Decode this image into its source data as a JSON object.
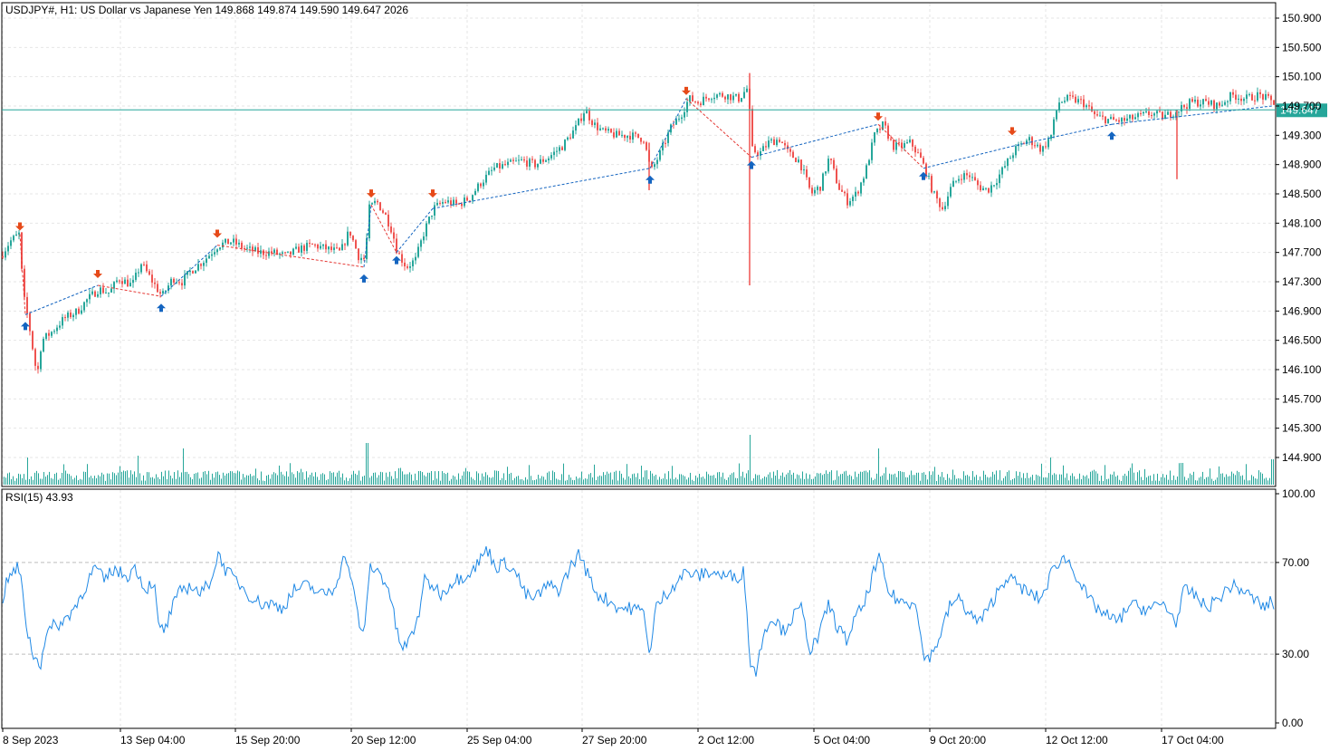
{
  "header": {
    "symbol_line": "USDJPY#, H1:  US Dollar vs Japanese Yen  149.868 149.874 149.590 149.647  2026"
  },
  "price_tag": "149.647",
  "rsi_label": "RSI(15) 43.93",
  "colors": {
    "up": "#26a69a",
    "down": "#ef5350",
    "price_line": "#26a69a",
    "rsi_line": "#1e88e5",
    "arrow_up": "#1565c0",
    "arrow_down": "#e64a19",
    "zigzag_up": "#1565c0",
    "zigzag_down": "#e53935",
    "grid": "#e6e6e6",
    "volume": "#26a69a"
  },
  "chart_data": [
    {
      "type": "candlestick",
      "title": "USDJPY#, H1",
      "y_ticks": [
        "150.900",
        "150.500",
        "150.100",
        "149.700",
        "149.300",
        "148.900",
        "148.500",
        "148.100",
        "147.700",
        "147.300",
        "146.900",
        "146.500",
        "146.100",
        "145.700",
        "145.300",
        "144.900"
      ],
      "ylim": [
        144.7,
        151.05
      ],
      "last_price": 149.647,
      "x_ticks": [
        "8 Sep 2023",
        "13 Sep 04:00",
        "15 Sep 20:00",
        "20 Sep 12:00",
        "25 Sep 04:00",
        "27 Sep 20:00",
        "2 Oct 12:00",
        "5 Oct 04:00",
        "9 Oct 20:00",
        "12 Oct 12:00",
        "17 Oct 04:00"
      ],
      "close_path": [
        [
          0,
          147.65
        ],
        [
          10,
          147.85
        ],
        [
          20,
          147.95
        ],
        [
          25,
          147.1
        ],
        [
          30,
          146.8
        ],
        [
          35,
          146.4
        ],
        [
          40,
          146.0
        ],
        [
          45,
          146.5
        ],
        [
          55,
          146.6
        ],
        [
          70,
          146.8
        ],
        [
          85,
          146.9
        ],
        [
          95,
          147.05
        ],
        [
          108,
          147.2
        ],
        [
          120,
          147.15
        ],
        [
          130,
          147.35
        ],
        [
          145,
          147.25
        ],
        [
          155,
          147.55
        ],
        [
          165,
          147.35
        ],
        [
          178,
          147.1
        ],
        [
          190,
          147.35
        ],
        [
          200,
          147.3
        ],
        [
          210,
          147.45
        ],
        [
          225,
          147.6
        ],
        [
          240,
          147.8
        ],
        [
          255,
          147.85
        ],
        [
          270,
          147.75
        ],
        [
          285,
          147.7
        ],
        [
          300,
          147.7
        ],
        [
          315,
          147.65
        ],
        [
          330,
          147.75
        ],
        [
          345,
          147.8
        ],
        [
          360,
          147.75
        ],
        [
          375,
          147.7
        ],
        [
          385,
          148.0
        ],
        [
          395,
          147.65
        ],
        [
          402,
          147.6
        ],
        [
          407,
          148.3
        ],
        [
          415,
          148.4
        ],
        [
          425,
          148.2
        ],
        [
          432,
          148.0
        ],
        [
          438,
          147.7
        ],
        [
          448,
          147.5
        ],
        [
          458,
          147.6
        ],
        [
          468,
          148.0
        ],
        [
          478,
          148.3
        ],
        [
          490,
          148.4
        ],
        [
          505,
          148.35
        ],
        [
          518,
          148.45
        ],
        [
          530,
          148.65
        ],
        [
          545,
          148.85
        ],
        [
          560,
          148.9
        ],
        [
          575,
          148.95
        ],
        [
          590,
          148.9
        ],
        [
          605,
          149.0
        ],
        [
          620,
          149.15
        ],
        [
          635,
          149.4
        ],
        [
          645,
          149.65
        ],
        [
          655,
          149.45
        ],
        [
          665,
          149.35
        ],
        [
          680,
          149.3
        ],
        [
          695,
          149.3
        ],
        [
          710,
          149.25
        ],
        [
          718,
          148.8
        ],
        [
          728,
          149.05
        ],
        [
          740,
          149.4
        ],
        [
          752,
          149.6
        ],
        [
          760,
          149.8
        ],
        [
          770,
          149.75
        ],
        [
          785,
          149.85
        ],
        [
          800,
          149.85
        ],
        [
          815,
          149.8
        ],
        [
          825,
          149.95
        ],
        [
          830,
          149.1
        ],
        [
          838,
          149.05
        ],
        [
          848,
          149.2
        ],
        [
          860,
          149.25
        ],
        [
          870,
          149.05
        ],
        [
          882,
          148.95
        ],
        [
          895,
          148.5
        ],
        [
          905,
          148.6
        ],
        [
          915,
          149.0
        ],
        [
          925,
          148.6
        ],
        [
          935,
          148.4
        ],
        [
          945,
          148.5
        ],
        [
          955,
          148.8
        ],
        [
          965,
          149.3
        ],
        [
          975,
          149.45
        ],
        [
          985,
          149.15
        ],
        [
          995,
          149.15
        ],
        [
          1005,
          149.2
        ],
        [
          1015,
          149.0
        ],
        [
          1022,
          148.8
        ],
        [
          1030,
          148.5
        ],
        [
          1040,
          148.3
        ],
        [
          1050,
          148.6
        ],
        [
          1060,
          148.75
        ],
        [
          1070,
          148.75
        ],
        [
          1080,
          148.6
        ],
        [
          1090,
          148.55
        ],
        [
          1100,
          148.7
        ],
        [
          1110,
          148.9
        ],
        [
          1120,
          149.1
        ],
        [
          1135,
          149.25
        ],
        [
          1150,
          149.1
        ],
        [
          1160,
          149.3
        ],
        [
          1168,
          149.75
        ],
        [
          1180,
          149.8
        ],
        [
          1195,
          149.75
        ],
        [
          1210,
          149.55
        ],
        [
          1228,
          149.5
        ],
        [
          1240,
          149.5
        ],
        [
          1255,
          149.55
        ],
        [
          1270,
          149.6
        ],
        [
          1285,
          149.55
        ],
        [
          1300,
          149.65
        ],
        [
          1315,
          149.75
        ],
        [
          1330,
          149.75
        ],
        [
          1345,
          149.7
        ],
        [
          1360,
          149.85
        ],
        [
          1375,
          149.8
        ],
        [
          1390,
          149.85
        ],
        [
          1405,
          149.75
        ]
      ],
      "spikes": [
        {
          "x": 828,
          "high": 150.15,
          "low": 147.25
        },
        {
          "x": 1300,
          "high": 149.65,
          "low": 148.7
        },
        {
          "x": 717,
          "high": 149.2,
          "low": 148.55
        }
      ],
      "signals_down": [
        [
          22,
          147.95
        ],
        [
          108,
          147.3
        ],
        [
          240,
          147.85
        ],
        [
          410,
          148.4
        ],
        [
          478,
          148.4
        ],
        [
          758,
          149.8
        ],
        [
          970,
          149.45
        ],
        [
          1118,
          149.25
        ]
      ],
      "signals_up": [
        [
          28,
          146.8
        ],
        [
          178,
          147.05
        ],
        [
          402,
          147.45
        ],
        [
          438,
          147.7
        ],
        [
          718,
          148.8
        ],
        [
          830,
          149.0
        ],
        [
          1020,
          148.85
        ],
        [
          1228,
          149.4
        ]
      ],
      "zigzag_red": [
        [
          22,
          147.95
        ],
        [
          28,
          146.85
        ],
        [
          108,
          147.25
        ],
        [
          178,
          147.1
        ],
        [
          240,
          147.8
        ],
        [
          402,
          147.5
        ],
        [
          410,
          148.35
        ],
        [
          438,
          147.7
        ],
        [
          478,
          148.3
        ],
        [
          718,
          148.85
        ],
        [
          758,
          149.8
        ],
        [
          830,
          149.0
        ],
        [
          970,
          149.45
        ],
        [
          1020,
          148.85
        ],
        [
          1118,
          149.15
        ],
        [
          1228,
          149.45
        ],
        [
          1405,
          149.7
        ]
      ],
      "volume_spikes": [
        [
          30,
          30
        ],
        [
          152,
          32
        ],
        [
          202,
          40
        ],
        [
          405,
          46
        ],
        [
          828,
          55
        ],
        [
          970,
          40
        ],
        [
          1160,
          30
        ],
        [
          1305,
          24
        ],
        [
          1405,
          28
        ]
      ]
    },
    {
      "type": "line",
      "title": "RSI(15) 43.93",
      "y_ticks": [
        "100.00",
        "70.00",
        "30.00",
        "0.00"
      ],
      "ylim": [
        0,
        100
      ],
      "levels": [
        70,
        30
      ],
      "last_value": 43.93,
      "series": [
        [
          0,
          50
        ],
        [
          8,
          62
        ],
        [
          15,
          66
        ],
        [
          20,
          68
        ],
        [
          25,
          58
        ],
        [
          30,
          40
        ],
        [
          38,
          28
        ],
        [
          45,
          26
        ],
        [
          50,
          38
        ],
        [
          58,
          42
        ],
        [
          70,
          44
        ],
        [
          85,
          52
        ],
        [
          95,
          60
        ],
        [
          105,
          68
        ],
        [
          115,
          62
        ],
        [
          125,
          67
        ],
        [
          140,
          64
        ],
        [
          150,
          68
        ],
        [
          160,
          58
        ],
        [
          170,
          62
        ],
        [
          175,
          42
        ],
        [
          182,
          40
        ],
        [
          190,
          50
        ],
        [
          200,
          58
        ],
        [
          212,
          60
        ],
        [
          222,
          56
        ],
        [
          232,
          62
        ],
        [
          242,
          74
        ],
        [
          250,
          66
        ],
        [
          262,
          62
        ],
        [
          275,
          56
        ],
        [
          288,
          52
        ],
        [
          300,
          52
        ],
        [
          312,
          50
        ],
        [
          325,
          58
        ],
        [
          340,
          60
        ],
        [
          355,
          56
        ],
        [
          368,
          58
        ],
        [
          382,
          74
        ],
        [
          390,
          58
        ],
        [
          398,
          42
        ],
        [
          402,
          36
        ],
        [
          408,
          68
        ],
        [
          418,
          66
        ],
        [
          428,
          60
        ],
        [
          432,
          54
        ],
        [
          438,
          40
        ],
        [
          445,
          32
        ],
        [
          455,
          38
        ],
        [
          462,
          46
        ],
        [
          468,
          62
        ],
        [
          478,
          60
        ],
        [
          488,
          56
        ],
        [
          500,
          62
        ],
        [
          512,
          64
        ],
        [
          525,
          68
        ],
        [
          538,
          76
        ],
        [
          548,
          68
        ],
        [
          560,
          70
        ],
        [
          572,
          64
        ],
        [
          580,
          56
        ],
        [
          590,
          54
        ],
        [
          605,
          60
        ],
        [
          618,
          58
        ],
        [
          630,
          68
        ],
        [
          640,
          74
        ],
        [
          650,
          64
        ],
        [
          660,
          56
        ],
        [
          670,
          54
        ],
        [
          685,
          50
        ],
        [
          700,
          50
        ],
        [
          712,
          48
        ],
        [
          718,
          28
        ],
        [
          724,
          50
        ],
        [
          735,
          56
        ],
        [
          748,
          62
        ],
        [
          758,
          66
        ],
        [
          770,
          64
        ],
        [
          785,
          66
        ],
        [
          800,
          64
        ],
        [
          815,
          64
        ],
        [
          822,
          66
        ],
        [
          828,
          28
        ],
        [
          835,
          22
        ],
        [
          845,
          42
        ],
        [
          855,
          46
        ],
        [
          865,
          40
        ],
        [
          875,
          46
        ],
        [
          885,
          50
        ],
        [
          895,
          32
        ],
        [
          905,
          38
        ],
        [
          915,
          52
        ],
        [
          925,
          42
        ],
        [
          935,
          36
        ],
        [
          945,
          46
        ],
        [
          955,
          52
        ],
        [
          965,
          66
        ],
        [
          972,
          72
        ],
        [
          980,
          58
        ],
        [
          990,
          54
        ],
        [
          1002,
          52
        ],
        [
          1012,
          54
        ],
        [
          1020,
          28
        ],
        [
          1030,
          30
        ],
        [
          1040,
          40
        ],
        [
          1050,
          52
        ],
        [
          1060,
          54
        ],
        [
          1070,
          48
        ],
        [
          1080,
          44
        ],
        [
          1090,
          48
        ],
        [
          1100,
          56
        ],
        [
          1112,
          64
        ],
        [
          1125,
          60
        ],
        [
          1138,
          56
        ],
        [
          1150,
          54
        ],
        [
          1162,
          66
        ],
        [
          1172,
          72
        ],
        [
          1182,
          70
        ],
        [
          1192,
          62
        ],
        [
          1202,
          54
        ],
        [
          1212,
          50
        ],
        [
          1225,
          46
        ],
        [
          1235,
          44
        ],
        [
          1248,
          52
        ],
        [
          1260,
          50
        ],
        [
          1272,
          50
        ],
        [
          1285,
          52
        ],
        [
          1300,
          44
        ],
        [
          1308,
          58
        ],
        [
          1320,
          56
        ],
        [
          1332,
          50
        ],
        [
          1345,
          54
        ],
        [
          1360,
          60
        ],
        [
          1372,
          58
        ],
        [
          1385,
          54
        ],
        [
          1398,
          50
        ],
        [
          1405,
          54
        ],
        [
          1410,
          46
        ]
      ]
    }
  ]
}
